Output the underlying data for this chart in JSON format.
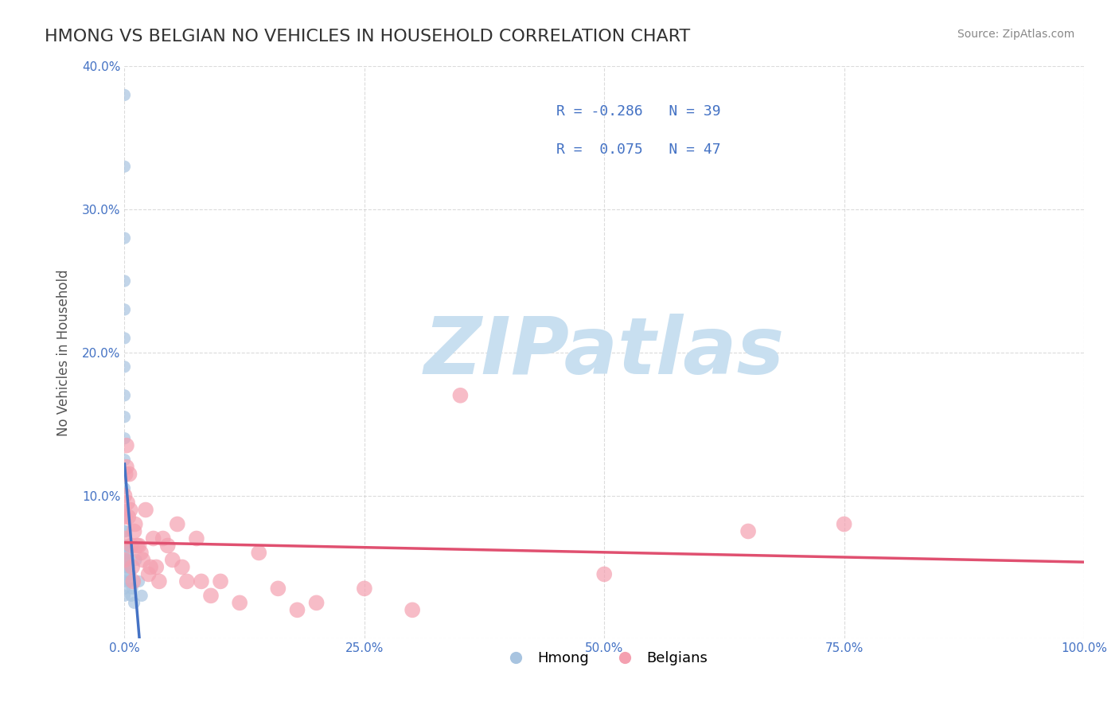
{
  "title": "HMONG VS BELGIAN NO VEHICLES IN HOUSEHOLD CORRELATION CHART",
  "source": "Source: ZipAtlas.com",
  "xlabel": "",
  "ylabel": "No Vehicles in Household",
  "xlim": [
    0.0,
    1.0
  ],
  "ylim": [
    0.0,
    0.4
  ],
  "xticks": [
    0.0,
    0.25,
    0.5,
    0.75,
    1.0
  ],
  "xtick_labels": [
    "0.0%",
    "25.0%",
    "50.0%",
    "75.0%",
    "100.0%"
  ],
  "yticks": [
    0.0,
    0.1,
    0.2,
    0.3,
    0.4
  ],
  "ytick_labels": [
    "",
    "10.0%",
    "20.0%",
    "30.0%",
    "40.0%"
  ],
  "hmong_color": "#a8c4e0",
  "belgian_color": "#f4a0b0",
  "hmong_line_color": "#4472c4",
  "belgian_line_color": "#e05070",
  "R_hmong": -0.286,
  "N_hmong": 39,
  "R_belgian": 0.075,
  "N_belgian": 47,
  "watermark": "ZIPatlas",
  "watermark_color": "#c8dff0",
  "legend_labels": [
    "Hmong",
    "Belgians"
  ],
  "background_color": "#ffffff",
  "grid_color": "#cccccc",
  "title_color": "#333333",
  "axis_label_color": "#555555",
  "tick_color": "#4472c4",
  "hmong_x": [
    0.0,
    0.0,
    0.0,
    0.0,
    0.0,
    0.0,
    0.0,
    0.0,
    0.0,
    0.0,
    0.0,
    0.0,
    0.0,
    0.0,
    0.0,
    0.0,
    0.0,
    0.0,
    0.0,
    0.0,
    0.0,
    0.0,
    0.0,
    0.001,
    0.001,
    0.001,
    0.002,
    0.002,
    0.003,
    0.004,
    0.005,
    0.005,
    0.006,
    0.007,
    0.008,
    0.01,
    0.012,
    0.015,
    0.018
  ],
  "hmong_y": [
    0.38,
    0.33,
    0.28,
    0.25,
    0.23,
    0.21,
    0.19,
    0.17,
    0.155,
    0.14,
    0.125,
    0.105,
    0.09,
    0.085,
    0.075,
    0.065,
    0.06,
    0.055,
    0.05,
    0.045,
    0.04,
    0.035,
    0.03,
    0.075,
    0.065,
    0.05,
    0.065,
    0.055,
    0.06,
    0.055,
    0.05,
    0.04,
    0.045,
    0.03,
    0.035,
    0.025,
    0.055,
    0.04,
    0.03
  ],
  "belgian_x": [
    0.0,
    0.0,
    0.0,
    0.0,
    0.001,
    0.002,
    0.002,
    0.003,
    0.004,
    0.005,
    0.006,
    0.007,
    0.008,
    0.009,
    0.01,
    0.011,
    0.013,
    0.015,
    0.017,
    0.019,
    0.022,
    0.025,
    0.027,
    0.03,
    0.033,
    0.036,
    0.04,
    0.045,
    0.05,
    0.055,
    0.06,
    0.065,
    0.075,
    0.08,
    0.09,
    0.1,
    0.12,
    0.14,
    0.16,
    0.18,
    0.2,
    0.25,
    0.3,
    0.35,
    0.5,
    0.65,
    0.75
  ],
  "belgian_y": [
    0.1,
    0.085,
    0.07,
    0.055,
    0.115,
    0.135,
    0.12,
    0.095,
    0.085,
    0.115,
    0.09,
    0.065,
    0.05,
    0.04,
    0.075,
    0.08,
    0.065,
    0.065,
    0.06,
    0.055,
    0.09,
    0.045,
    0.05,
    0.07,
    0.05,
    0.04,
    0.07,
    0.065,
    0.055,
    0.08,
    0.05,
    0.04,
    0.07,
    0.04,
    0.03,
    0.04,
    0.025,
    0.06,
    0.035,
    0.02,
    0.025,
    0.035,
    0.02,
    0.17,
    0.045,
    0.075,
    0.08
  ]
}
